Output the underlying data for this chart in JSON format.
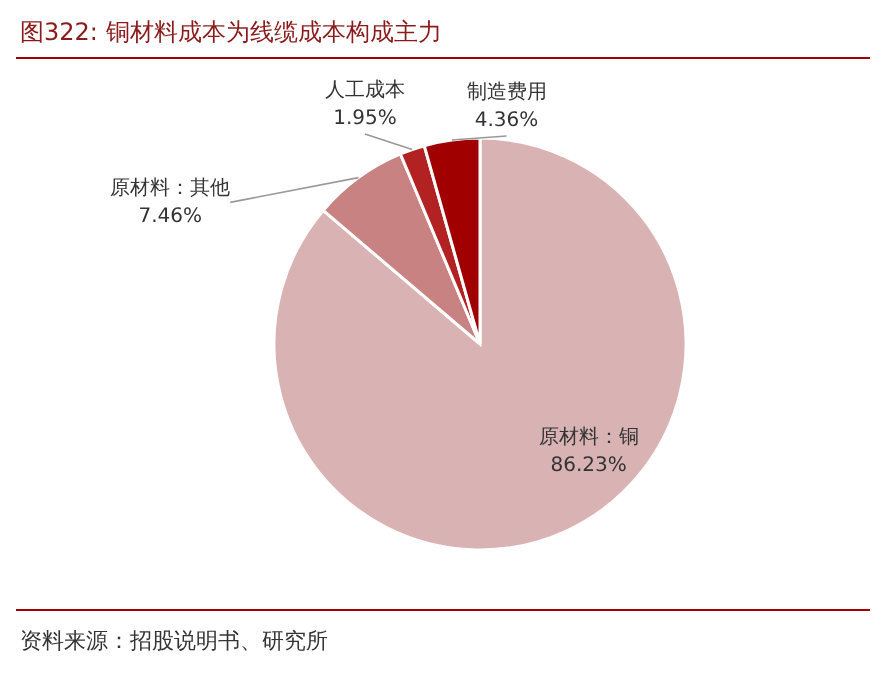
{
  "chart_data": {
    "type": "pie",
    "title": "图322:   铜材料成本为线缆成本构成主力",
    "categories": [
      "原材料：铜",
      "原材料：其他",
      "人工成本",
      "制造费用"
    ],
    "values": [
      86.23,
      7.46,
      1.95,
      4.36
    ],
    "value_labels": [
      "86.23%",
      "7.46%",
      "1.95%",
      "4.36%"
    ],
    "colors": [
      "#d9b3b3",
      "#c98282",
      "#b22222",
      "#a00000"
    ],
    "annotations": [
      "资料来源：招股说明书、研究所"
    ]
  }
}
